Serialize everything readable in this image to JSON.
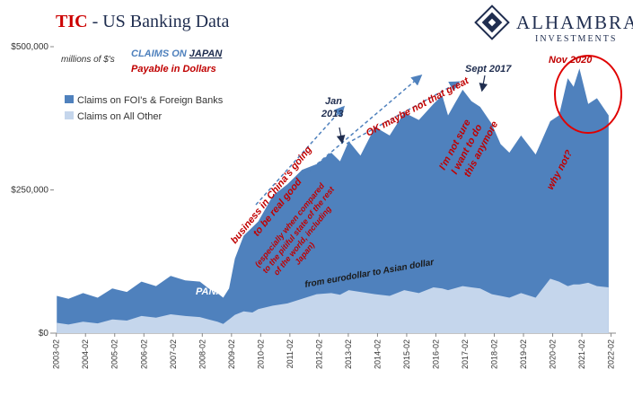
{
  "header": {
    "title_brand": "TIC",
    "title_rest": " - US Banking Data",
    "logo_name": "ALHAMBRA",
    "logo_sub": "INVESTMENTS"
  },
  "legend_header": {
    "units": "millions of $'s",
    "claims_on": "CLAIMS ON",
    "country": "JAPAN",
    "payable": "Payable in Dollars"
  },
  "colors": {
    "foi_series": "#4f81bd",
    "other_series": "#c5d6ec",
    "brand_red": "#cc0000",
    "annotation_red": "#c00000",
    "arrow_blue": "#4f81bd",
    "logo_navy": "#1f2d4f"
  },
  "chart_data": {
    "type": "area",
    "stacked": true,
    "ylim": [
      0,
      500000
    ],
    "yticks": [
      "$0",
      "$250,000",
      "$500,000"
    ],
    "xticks": [
      "2003-02",
      "2004-02",
      "2005-02",
      "2006-02",
      "2007-02",
      "2008-02",
      "2009-02",
      "2010-02",
      "2011-02",
      "2012-02",
      "2013-02",
      "2014-02",
      "2015-02",
      "2016-02",
      "2017-02",
      "2018-02",
      "2019-02",
      "2020-02",
      "2021-02",
      "2022-02"
    ],
    "x": [
      2003.1,
      2003.5,
      2004.0,
      2004.5,
      2005.0,
      2005.5,
      2006.0,
      2006.5,
      2007.0,
      2007.5,
      2008.0,
      2008.3,
      2008.6,
      2008.8,
      2009.0,
      2009.2,
      2009.5,
      2009.8,
      2010.0,
      2010.5,
      2011.0,
      2011.5,
      2012.0,
      2012.5,
      2012.8,
      2013.1,
      2013.5,
      2014.0,
      2014.5,
      2015.0,
      2015.5,
      2016.0,
      2016.3,
      2016.5,
      2017.0,
      2017.3,
      2017.6,
      2018.0,
      2018.3,
      2018.6,
      2019.0,
      2019.5,
      2020.0,
      2020.3,
      2020.6,
      2020.8,
      2021.0,
      2021.3,
      2021.6,
      2022.0
    ],
    "series": [
      {
        "name": "Claims on FOI's & Foreign Banks",
        "values": [
          65000,
          60000,
          70000,
          62000,
          78000,
          72000,
          90000,
          82000,
          100000,
          92000,
          90000,
          78000,
          70000,
          62000,
          78000,
          130000,
          170000,
          185000,
          195000,
          240000,
          260000,
          285000,
          295000,
          315000,
          300000,
          335000,
          310000,
          360000,
          345000,
          385000,
          372000,
          400000,
          415000,
          380000,
          425000,
          405000,
          395000,
          365000,
          330000,
          315000,
          345000,
          312000,
          370000,
          380000,
          445000,
          430000,
          462000,
          400000,
          410000,
          380000
        ]
      },
      {
        "name": "Claims on All Other",
        "values": [
          18000,
          15000,
          20000,
          17000,
          24000,
          22000,
          30000,
          27000,
          33000,
          30000,
          28000,
          24000,
          20000,
          16000,
          24000,
          32000,
          38000,
          36000,
          42000,
          48000,
          52000,
          60000,
          68000,
          70000,
          67000,
          75000,
          72000,
          68000,
          65000,
          75000,
          70000,
          80000,
          78000,
          75000,
          82000,
          80000,
          78000,
          68000,
          65000,
          62000,
          70000,
          62000,
          95000,
          90000,
          82000,
          85000,
          85000,
          88000,
          82000,
          80000
        ]
      }
    ],
    "legend_position": "top-left",
    "grid": false
  },
  "annotations": {
    "panic": "PANIC",
    "china_line1": "business in China's going",
    "china_line2": "to be real good",
    "especially_line1": "(especially when compared",
    "especially_line2": "to the pitiful state of the rest",
    "especially_line3": "of the world, including",
    "especially_line4": "Japan)",
    "jan_line1": "Jan",
    "jan_line2": "2013",
    "ok_maybe": "OK maybe not that great",
    "sept": "Sept 2017",
    "not_sure_line1": "I'm not sure",
    "not_sure_line2": "I want to do",
    "not_sure_line3": "this anymore",
    "nov": "Nov 2020",
    "why_not": "why not?",
    "eurodollar": "from eurodollar to Asian dollar"
  }
}
